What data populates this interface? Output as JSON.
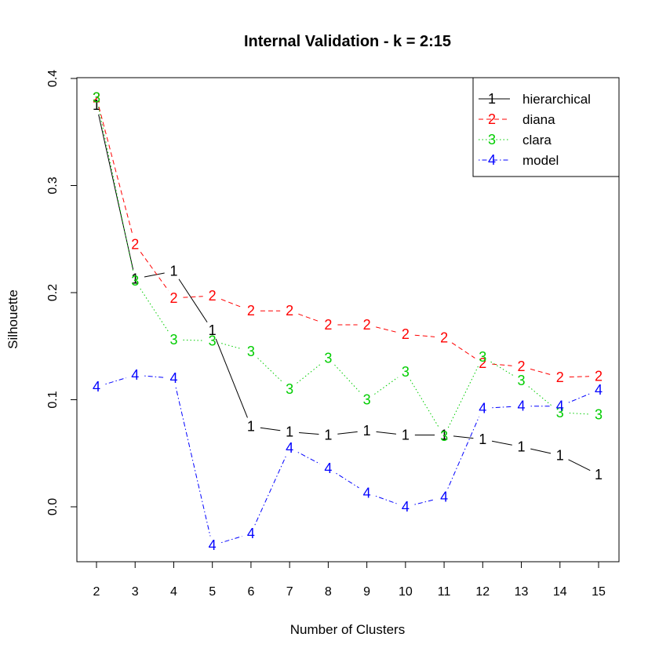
{
  "chart_data": {
    "type": "line",
    "title": "Internal Validation - k = 2:15",
    "xlabel": "Number of Clusters",
    "ylabel": "Silhouette",
    "x": [
      2,
      3,
      4,
      5,
      6,
      7,
      8,
      9,
      10,
      11,
      12,
      13,
      14,
      15
    ],
    "xlim": [
      1.5,
      15.5
    ],
    "ylim": [
      -0.05,
      0.4
    ],
    "yticks": [
      0.0,
      0.1,
      0.2,
      0.3,
      0.4
    ],
    "ytick_labels": [
      "0.0",
      "0.1",
      "0.2",
      "0.3",
      "0.4"
    ],
    "legend_position": "top-right",
    "series": [
      {
        "name": "hierarchical",
        "marker": "1",
        "color": "#000000",
        "dash": "solid",
        "values": [
          0.375,
          0.213,
          0.22,
          0.165,
          0.075,
          0.07,
          0.067,
          0.071,
          0.067,
          0.067,
          0.063,
          0.056,
          0.048,
          0.03
        ]
      },
      {
        "name": "diana",
        "marker": "2",
        "color": "#ff0000",
        "dash": "dashed",
        "values": [
          0.382,
          0.245,
          0.195,
          0.197,
          0.183,
          0.183,
          0.17,
          0.17,
          0.161,
          0.158,
          0.134,
          0.131,
          0.121,
          0.122
        ]
      },
      {
        "name": "clara",
        "marker": "3",
        "color": "#00cd00",
        "dash": "dotted",
        "values": [
          0.382,
          0.211,
          0.156,
          0.155,
          0.145,
          0.11,
          0.139,
          0.1,
          0.126,
          0.066,
          0.14,
          0.118,
          0.088,
          0.086
        ]
      },
      {
        "name": "model",
        "marker": "4",
        "color": "#0000ff",
        "dash": "dotdash",
        "values": [
          0.112,
          0.123,
          0.12,
          -0.036,
          -0.025,
          0.055,
          0.036,
          0.013,
          0.0,
          0.009,
          0.092,
          0.094,
          0.094,
          0.109
        ]
      }
    ]
  }
}
